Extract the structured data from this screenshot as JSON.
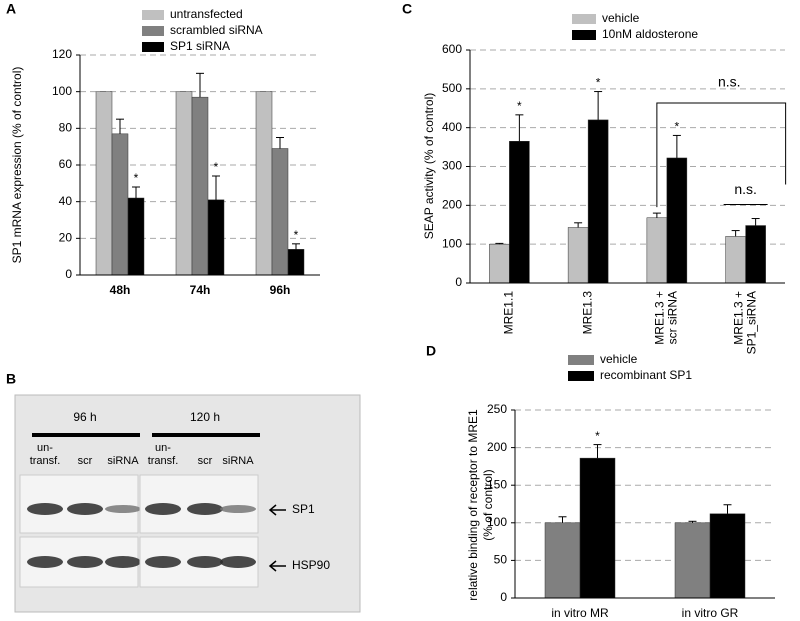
{
  "chart_data": [
    {
      "type": "bar",
      "panel": "A",
      "ylabel": "SP1 mRNA expression (% of control)",
      "categories": [
        "48h",
        "74h",
        "96h"
      ],
      "ylim": [
        0,
        120
      ],
      "yticks": [
        0,
        20,
        40,
        60,
        80,
        100,
        120
      ],
      "grid": true,
      "legend": "top",
      "series": [
        {
          "name": "untransfected",
          "color": "#c0c0c0",
          "values": [
            100,
            100,
            100
          ]
        },
        {
          "name": "scrambled siRNA",
          "color": "#808080",
          "values": [
            77,
            97,
            69
          ],
          "errors": [
            8,
            13,
            6
          ]
        },
        {
          "name": "SP1 siRNA",
          "color": "#000000",
          "values": [
            42,
            41,
            14
          ],
          "errors": [
            6,
            13,
            3
          ],
          "significance": [
            "*",
            "*",
            "*"
          ]
        }
      ]
    },
    {
      "type": "bar",
      "panel": "C",
      "ylabel": "SEAP activity (% of control)",
      "categories": [
        [
          "MRE1.1"
        ],
        [
          "MRE1.3"
        ],
        [
          "MRE1.3 +",
          "scr siRNA"
        ],
        [
          "MRE1.3 +",
          "SP1_siRNA"
        ]
      ],
      "ylim": [
        0,
        600
      ],
      "yticks": [
        0,
        100,
        200,
        300,
        400,
        500,
        600
      ],
      "grid": true,
      "legend": "top",
      "series": [
        {
          "name": "vehicle",
          "color": "#c0c0c0",
          "values": [
            100,
            143,
            168,
            120
          ],
          "errors": [
            2,
            12,
            12,
            15
          ]
        },
        {
          "name": "10nM aldosterone",
          "color": "#000000",
          "values": [
            365,
            420,
            322,
            148
          ],
          "errors": [
            68,
            73,
            58,
            18
          ],
          "significance": [
            "*",
            "*",
            "*",
            null
          ]
        }
      ],
      "annotations": [
        "n.s.",
        "n.s."
      ]
    },
    {
      "type": "bar",
      "panel": "D",
      "ylabel": [
        "relative binding of receptor to MRE1",
        "(% of control)"
      ],
      "categories": [
        "in vitro MR",
        "in vitro GR"
      ],
      "ylim": [
        0,
        250
      ],
      "yticks": [
        0,
        50,
        100,
        150,
        200,
        250
      ],
      "grid": true,
      "legend": "top",
      "series": [
        {
          "name": "vehicle",
          "color": "#808080",
          "values": [
            100,
            100
          ],
          "errors": [
            8,
            2
          ]
        },
        {
          "name": "recombinant SP1",
          "color": "#000000",
          "values": [
            186,
            112
          ],
          "errors": [
            18,
            12
          ],
          "significance": [
            "*",
            null
          ]
        }
      ]
    }
  ],
  "blot": {
    "panel": "B",
    "groups": [
      {
        "label": "96 h",
        "lanes": [
          [
            "un-",
            "transf."
          ],
          [
            "scr"
          ],
          [
            "siRNA"
          ]
        ]
      },
      {
        "label": "120 h",
        "lanes": [
          [
            "un-",
            "transf."
          ],
          [
            "scr"
          ],
          [
            "siRNA"
          ]
        ]
      }
    ],
    "bands": [
      "SP1",
      "HSP90"
    ]
  }
}
